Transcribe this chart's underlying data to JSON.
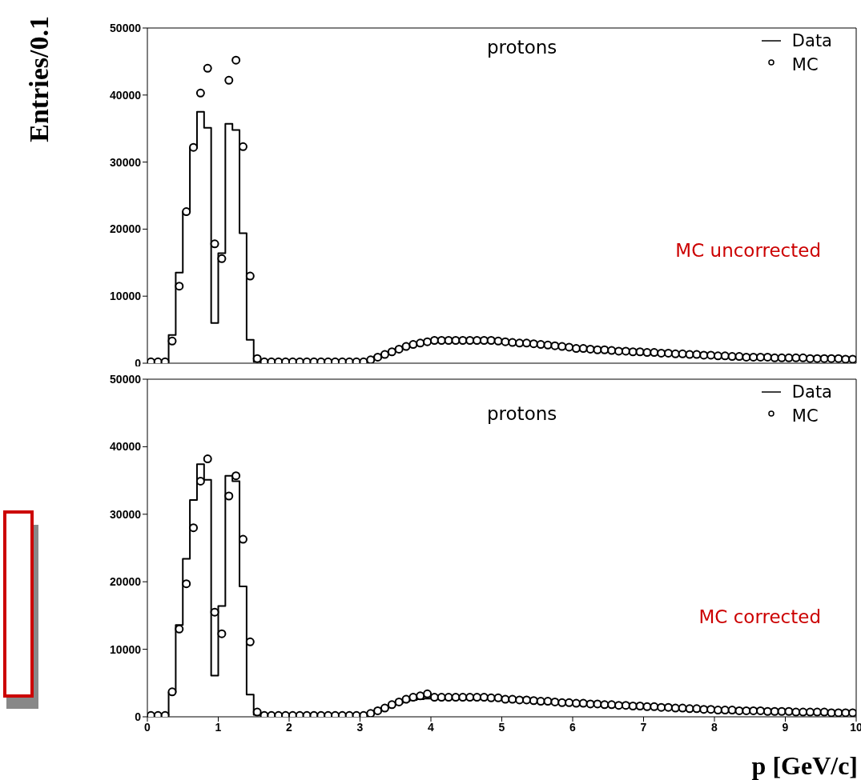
{
  "chart_data": [
    {
      "type": "histogram",
      "ylabel": "Entries/0.1",
      "annotations": [
        "protons",
        "MC uncorrected"
      ],
      "legend": "top right",
      "marker": "circle",
      "grid": false,
      "tick_labels": "y",
      "xlim": [
        0,
        10
      ],
      "xticks": [
        0,
        1,
        2,
        3,
        4,
        5,
        6,
        7,
        8,
        9,
        10
      ],
      "ylim": [
        0,
        50000
      ],
      "yticks": [
        0,
        10000,
        20000,
        30000,
        40000,
        50000
      ],
      "bins": [
        0,
        0.1,
        0.2,
        0.3,
        0.4,
        0.5,
        0.6,
        0.7,
        0.8,
        0.9,
        1,
        1.1,
        1.2,
        1.3,
        1.4,
        1.5,
        1.6,
        1.7,
        1.8,
        1.9,
        2,
        2.1,
        2.2,
        2.3,
        2.4,
        2.5,
        2.6,
        2.7,
        2.8,
        2.9,
        3,
        3.1,
        3.2,
        3.3,
        3.4,
        3.5,
        3.6,
        3.7,
        3.8,
        3.9,
        4,
        4.1,
        4.2,
        4.3,
        4.4,
        4.5,
        4.6,
        4.7,
        4.8,
        4.9,
        5,
        5.1,
        5.2,
        5.3,
        5.4,
        5.5,
        5.6,
        5.7,
        5.8,
        5.9,
        6,
        6.1,
        6.2,
        6.3,
        6.4,
        6.5,
        6.6,
        6.7,
        6.8,
        6.9,
        7,
        7.1,
        7.2,
        7.3,
        7.4,
        7.5,
        7.6,
        7.7,
        7.8,
        7.9,
        8,
        8.1,
        8.2,
        8.3,
        8.4,
        8.5,
        8.6,
        8.7,
        8.8,
        8.9,
        9,
        9.1,
        9.2,
        9.3,
        9.4,
        9.5,
        9.6,
        9.7,
        9.8,
        9.9,
        10
      ],
      "series": [
        {
          "name": "Data",
          "color": "#000000",
          "values": [
            300,
            200,
            300,
            4200,
            13500,
            22600,
            32100,
            37500,
            35100,
            6000,
            16400,
            35700,
            34800,
            19400,
            3500,
            200,
            200,
            200,
            200,
            200,
            200,
            200,
            200,
            200,
            200,
            200,
            200,
            200,
            200,
            200,
            300,
            600,
            1000,
            1400,
            1800,
            2200,
            2500,
            2800,
            3000,
            3100,
            3300,
            3300,
            3300,
            3300,
            3300,
            3300,
            3300,
            3300,
            3300,
            3200,
            3000,
            3000,
            2900,
            2900,
            2800,
            2700,
            2600,
            2500,
            2400,
            2300,
            2200,
            2200,
            2100,
            2000,
            2000,
            1900,
            1800,
            1800,
            1700,
            1700,
            1600,
            1600,
            1500,
            1500,
            1400,
            1400,
            1300,
            1300,
            1200,
            1200,
            1100,
            1100,
            1000,
            1000,
            900,
            900,
            900,
            900,
            800,
            800,
            800,
            800,
            800,
            700,
            700,
            700,
            700,
            700,
            600,
            600
          ]
        },
        {
          "name": "MC",
          "type": "scatter",
          "color": "#000000",
          "x": [
            0.05,
            0.15,
            0.25,
            0.35,
            0.45,
            0.55,
            0.65,
            0.75,
            0.85,
            0.95,
            1.05,
            1.15,
            1.25,
            1.35,
            1.45,
            1.55,
            1.65,
            1.75,
            1.85,
            1.95,
            2.05,
            2.15,
            2.25,
            2.35,
            2.45,
            2.55,
            2.65,
            2.75,
            2.85,
            2.95,
            3.05,
            3.15,
            3.25,
            3.35,
            3.45,
            3.55,
            3.65,
            3.75,
            3.85,
            3.95,
            4.05,
            4.15,
            4.25,
            4.35,
            4.45,
            4.55,
            4.65,
            4.75,
            4.85,
            4.95,
            5.05,
            5.15,
            5.25,
            5.35,
            5.45,
            5.55,
            5.65,
            5.75,
            5.85,
            5.95,
            6.05,
            6.15,
            6.25,
            6.35,
            6.45,
            6.55,
            6.65,
            6.75,
            6.85,
            6.95,
            7.05,
            7.15,
            7.25,
            7.35,
            7.45,
            7.55,
            7.65,
            7.75,
            7.85,
            7.95,
            8.05,
            8.15,
            8.25,
            8.35,
            8.45,
            8.55,
            8.65,
            8.75,
            8.85,
            8.95,
            9.05,
            9.15,
            9.25,
            9.35,
            9.45,
            9.55,
            9.65,
            9.75,
            9.85,
            9.95
          ],
          "values": [
            200,
            200,
            200,
            3300,
            11500,
            22600,
            32200,
            40300,
            44000,
            17800,
            15600,
            42200,
            45200,
            32300,
            13000,
            700,
            200,
            200,
            200,
            200,
            200,
            200,
            200,
            200,
            200,
            200,
            200,
            200,
            200,
            200,
            200,
            500,
            900,
            1300,
            1700,
            2100,
            2500,
            2800,
            3000,
            3200,
            3400,
            3400,
            3400,
            3400,
            3400,
            3400,
            3400,
            3400,
            3400,
            3300,
            3200,
            3100,
            3000,
            3000,
            2900,
            2800,
            2700,
            2600,
            2500,
            2400,
            2200,
            2200,
            2100,
            2000,
            2000,
            1900,
            1800,
            1800,
            1700,
            1700,
            1600,
            1600,
            1500,
            1500,
            1400,
            1400,
            1300,
            1300,
            1200,
            1200,
            1100,
            1100,
            1000,
            1000,
            900,
            900,
            900,
            900,
            800,
            800,
            800,
            800,
            800,
            700,
            700,
            700,
            700,
            700,
            600,
            600
          ]
        }
      ]
    },
    {
      "type": "histogram",
      "xlabel": "p [GeV/c]",
      "annotations": [
        "protons",
        "MC corrected"
      ],
      "legend": "top right",
      "marker": "circle",
      "grid": false,
      "xlim": [
        0,
        10
      ],
      "xticks": [
        0,
        1,
        2,
        3,
        4,
        5,
        6,
        7,
        8,
        9,
        10
      ],
      "ylim": [
        0,
        50000
      ],
      "yticks": [
        0,
        10000,
        20000,
        30000,
        40000,
        50000
      ],
      "bins": [
        0,
        0.1,
        0.2,
        0.3,
        0.4,
        0.5,
        0.6,
        0.7,
        0.8,
        0.9,
        1,
        1.1,
        1.2,
        1.3,
        1.4,
        1.5,
        1.6,
        1.7,
        1.8,
        1.9,
        2,
        2.1,
        2.2,
        2.3,
        2.4,
        2.5,
        2.6,
        2.7,
        2.8,
        2.9,
        3,
        3.1,
        3.2,
        3.3,
        3.4,
        3.5,
        3.6,
        3.7,
        3.8,
        3.9,
        4,
        4.1,
        4.2,
        4.3,
        4.4,
        4.5,
        4.6,
        4.7,
        4.8,
        4.9,
        5,
        5.1,
        5.2,
        5.3,
        5.4,
        5.5,
        5.6,
        5.7,
        5.8,
        5.9,
        6,
        6.1,
        6.2,
        6.3,
        6.4,
        6.5,
        6.6,
        6.7,
        6.8,
        6.9,
        7,
        7.1,
        7.2,
        7.3,
        7.4,
        7.5,
        7.6,
        7.7,
        7.8,
        7.9,
        8,
        8.1,
        8.2,
        8.3,
        8.4,
        8.5,
        8.6,
        8.7,
        8.8,
        8.9,
        9,
        9.1,
        9.2,
        9.3,
        9.4,
        9.5,
        9.6,
        9.7,
        9.8,
        9.9,
        10
      ],
      "series": [
        {
          "name": "Data",
          "color": "#000000",
          "values": [
            300,
            200,
            300,
            3600,
            13600,
            23400,
            32100,
            37400,
            35100,
            6100,
            16400,
            35700,
            34900,
            19300,
            3300,
            300,
            200,
            200,
            200,
            200,
            200,
            200,
            200,
            200,
            200,
            200,
            200,
            200,
            200,
            200,
            300,
            500,
            900,
            1300,
            1700,
            2000,
            2300,
            2500,
            2600,
            2700,
            2800,
            2800,
            2800,
            2800,
            2800,
            2800,
            2800,
            2800,
            2700,
            2700,
            2600,
            2600,
            2500,
            2500,
            2400,
            2300,
            2300,
            2200,
            2100,
            2100,
            2000,
            2000,
            1900,
            1900,
            1800,
            1800,
            1700,
            1700,
            1600,
            1600,
            1500,
            1500,
            1400,
            1400,
            1300,
            1300,
            1200,
            1200,
            1100,
            1100,
            1000,
            1000,
            1000,
            900,
            900,
            900,
            900,
            800,
            800,
            800,
            800,
            700,
            700,
            700,
            700,
            700,
            600,
            600,
            600,
            600
          ]
        },
        {
          "name": "MC",
          "type": "scatter",
          "color": "#000000",
          "x": [
            0.05,
            0.15,
            0.25,
            0.35,
            0.45,
            0.55,
            0.65,
            0.75,
            0.85,
            0.95,
            1.05,
            1.15,
            1.25,
            1.35,
            1.45,
            1.55,
            1.65,
            1.75,
            1.85,
            1.95,
            2.05,
            2.15,
            2.25,
            2.35,
            2.45,
            2.55,
            2.65,
            2.75,
            2.85,
            2.95,
            3.05,
            3.15,
            3.25,
            3.35,
            3.45,
            3.55,
            3.65,
            3.75,
            3.85,
            3.95,
            4.05,
            4.15,
            4.25,
            4.35,
            4.45,
            4.55,
            4.65,
            4.75,
            4.85,
            4.95,
            5.05,
            5.15,
            5.25,
            5.35,
            5.45,
            5.55,
            5.65,
            5.75,
            5.85,
            5.95,
            6.05,
            6.15,
            6.25,
            6.35,
            6.45,
            6.55,
            6.65,
            6.75,
            6.85,
            6.95,
            7.05,
            7.15,
            7.25,
            7.35,
            7.45,
            7.55,
            7.65,
            7.75,
            7.85,
            7.95,
            8.05,
            8.15,
            8.25,
            8.35,
            8.45,
            8.55,
            8.65,
            8.75,
            8.85,
            8.95,
            9.05,
            9.15,
            9.25,
            9.35,
            9.45,
            9.55,
            9.65,
            9.75,
            9.85,
            9.95
          ],
          "values": [
            200,
            200,
            200,
            3700,
            13000,
            19700,
            28000,
            34900,
            38200,
            15500,
            12300,
            32700,
            35700,
            26300,
            11100,
            700,
            200,
            200,
            200,
            200,
            200,
            200,
            200,
            200,
            200,
            200,
            200,
            200,
            200,
            200,
            200,
            500,
            900,
            1300,
            1800,
            2200,
            2600,
            2900,
            3100,
            3400,
            2900,
            2900,
            2900,
            2900,
            2900,
            2900,
            2900,
            2900,
            2800,
            2800,
            2600,
            2600,
            2500,
            2500,
            2400,
            2300,
            2300,
            2200,
            2100,
            2100,
            2000,
            2000,
            1900,
            1900,
            1800,
            1800,
            1700,
            1700,
            1600,
            1600,
            1500,
            1500,
            1400,
            1400,
            1300,
            1300,
            1200,
            1200,
            1100,
            1100,
            1000,
            1000,
            1000,
            900,
            900,
            900,
            900,
            800,
            800,
            800,
            800,
            700,
            700,
            700,
            700,
            700,
            600,
            600,
            600,
            600
          ]
        }
      ]
    }
  ]
}
